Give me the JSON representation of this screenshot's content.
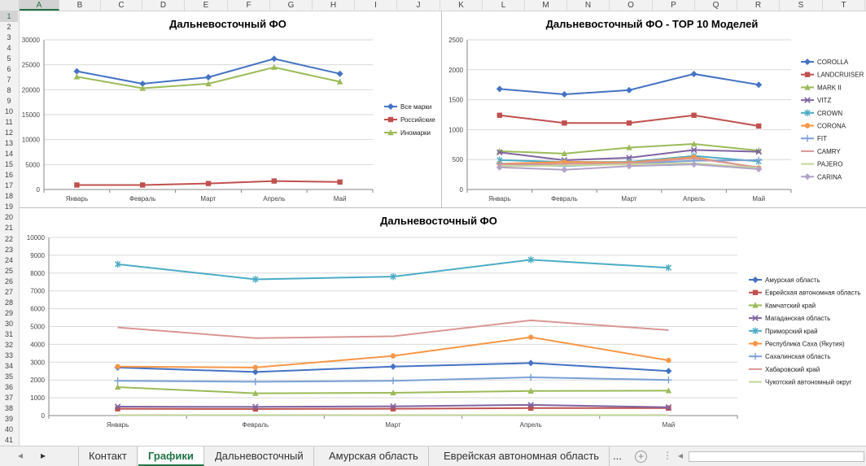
{
  "columns": [
    "A",
    "B",
    "C",
    "D",
    "E",
    "F",
    "G",
    "H",
    "I",
    "J",
    "K",
    "L",
    "M",
    "N",
    "O",
    "P",
    "Q",
    "R",
    "S",
    "T"
  ],
  "rows": [
    "1",
    "2",
    "3",
    "4",
    "5",
    "6",
    "7",
    "8",
    "9",
    "10",
    "11",
    "12",
    "13",
    "14",
    "15",
    "16",
    "17",
    "18",
    "19",
    "20",
    "21",
    "22",
    "23",
    "24",
    "25",
    "26",
    "27",
    "28",
    "29",
    "30",
    "31",
    "32",
    "33",
    "34",
    "35",
    "36",
    "37",
    "38",
    "39",
    "40",
    "41"
  ],
  "tabs": {
    "contact": "Контакт",
    "charts": "Графики",
    "far_east": "Дальневосточный",
    "amur": "Амурская область",
    "jewish": "Еврейская автономная область",
    "more": "..."
  },
  "colors": {
    "accent": "#217346"
  },
  "chart_data": [
    {
      "type": "line",
      "title": "Дальневосточный ФО",
      "categories": [
        "Январь",
        "Февраль",
        "Март",
        "Апрель",
        "Май"
      ],
      "ylim": [
        0,
        30000
      ],
      "yticks": [
        "0",
        "5000",
        "10000",
        "15000",
        "20000",
        "25000",
        "30000"
      ],
      "legend": "right",
      "grid": true,
      "series": [
        {
          "name": "Все марки",
          "values": [
            23700,
            21200,
            22500,
            26200,
            23200
          ],
          "color": "#4472c4",
          "marker": "diamond"
        },
        {
          "name": "Российские",
          "values": [
            900,
            900,
            1200,
            1700,
            1500
          ],
          "color": "#c0504d",
          "marker": "square"
        },
        {
          "name": "Иномарки",
          "values": [
            22600,
            20300,
            21200,
            24500,
            21600
          ],
          "color": "#9bbb59",
          "marker": "triangle"
        }
      ]
    },
    {
      "type": "line",
      "title": "Дальневосточный ФО - TOP 10 Моделей",
      "categories": [
        "Январь",
        "Февраль",
        "Март",
        "Апрель",
        "Май"
      ],
      "ylim": [
        0,
        2500
      ],
      "yticks": [
        "0",
        "500",
        "1000",
        "1500",
        "2000",
        "2500"
      ],
      "legend": "right",
      "grid": true,
      "series": [
        {
          "name": "COROLLA",
          "values": [
            1680,
            1590,
            1660,
            1930,
            1750
          ],
          "color": "#4472c4",
          "marker": "diamond"
        },
        {
          "name": "LANDCRUISER",
          "values": [
            1240,
            1110,
            1110,
            1240,
            1060
          ],
          "color": "#c0504d",
          "marker": "square"
        },
        {
          "name": "MARK II",
          "values": [
            640,
            600,
            700,
            760,
            650
          ],
          "color": "#9bbb59",
          "marker": "triangle"
        },
        {
          "name": "VITZ",
          "values": [
            620,
            490,
            530,
            660,
            630
          ],
          "color": "#8064a2",
          "marker": "x"
        },
        {
          "name": "CROWN",
          "values": [
            490,
            460,
            460,
            560,
            470
          ],
          "color": "#4bacc6",
          "marker": "star"
        },
        {
          "name": "CORONA",
          "values": [
            430,
            460,
            450,
            540,
            360
          ],
          "color": "#f79646",
          "marker": "circle"
        },
        {
          "name": "FIT",
          "values": [
            430,
            390,
            430,
            480,
            490
          ],
          "color": "#7ba0d4",
          "marker": "plus"
        },
        {
          "name": "CAMRY",
          "values": [
            420,
            430,
            440,
            520,
            370
          ],
          "color": "#d99694",
          "marker": "none"
        },
        {
          "name": "PAJERO",
          "values": [
            390,
            400,
            420,
            440,
            360
          ],
          "color": "#c3d69b",
          "marker": "none"
        },
        {
          "name": "CARINA",
          "values": [
            370,
            330,
            390,
            420,
            340
          ],
          "color": "#b3a2c7",
          "marker": "diamond"
        }
      ]
    },
    {
      "type": "line",
      "title": "Дальневосточный ФО",
      "categories": [
        "Январь",
        "Февраль",
        "Март",
        "Апрель",
        "Май"
      ],
      "ylim": [
        0,
        10000
      ],
      "yticks": [
        "0",
        "1000",
        "2000",
        "3000",
        "4000",
        "5000",
        "6000",
        "7000",
        "8000",
        "9000",
        "10000"
      ],
      "legend": "right",
      "grid": true,
      "series": [
        {
          "name": "Амурская область",
          "values": [
            2700,
            2450,
            2750,
            2950,
            2500
          ],
          "color": "#4472c4",
          "marker": "diamond"
        },
        {
          "name": "Еврейская автономная область",
          "values": [
            380,
            370,
            380,
            420,
            420
          ],
          "color": "#c0504d",
          "marker": "square"
        },
        {
          "name": "Камчатский край",
          "values": [
            1600,
            1250,
            1280,
            1380,
            1400
          ],
          "color": "#9bbb59",
          "marker": "triangle"
        },
        {
          "name": "Магаданская область",
          "values": [
            500,
            490,
            520,
            600,
            470
          ],
          "color": "#8064a2",
          "marker": "x"
        },
        {
          "name": "Приморский край",
          "values": [
            8500,
            7650,
            7800,
            8750,
            8300
          ],
          "color": "#4bacc6",
          "marker": "star"
        },
        {
          "name": "Республика Саха (Якутия)",
          "values": [
            2750,
            2700,
            3350,
            4400,
            3100
          ],
          "color": "#f79646",
          "marker": "circle"
        },
        {
          "name": "Сахалинская область",
          "values": [
            1950,
            1900,
            1950,
            2150,
            2000
          ],
          "color": "#7ba0d4",
          "marker": "plus"
        },
        {
          "name": "Хабаровский край",
          "values": [
            4950,
            4350,
            4450,
            5350,
            4800
          ],
          "color": "#d99694",
          "marker": "none"
        },
        {
          "name": "Чукотский автономный округ",
          "values": [
            30,
            30,
            30,
            30,
            30
          ],
          "color": "#c3d69b",
          "marker": "none"
        }
      ]
    }
  ]
}
